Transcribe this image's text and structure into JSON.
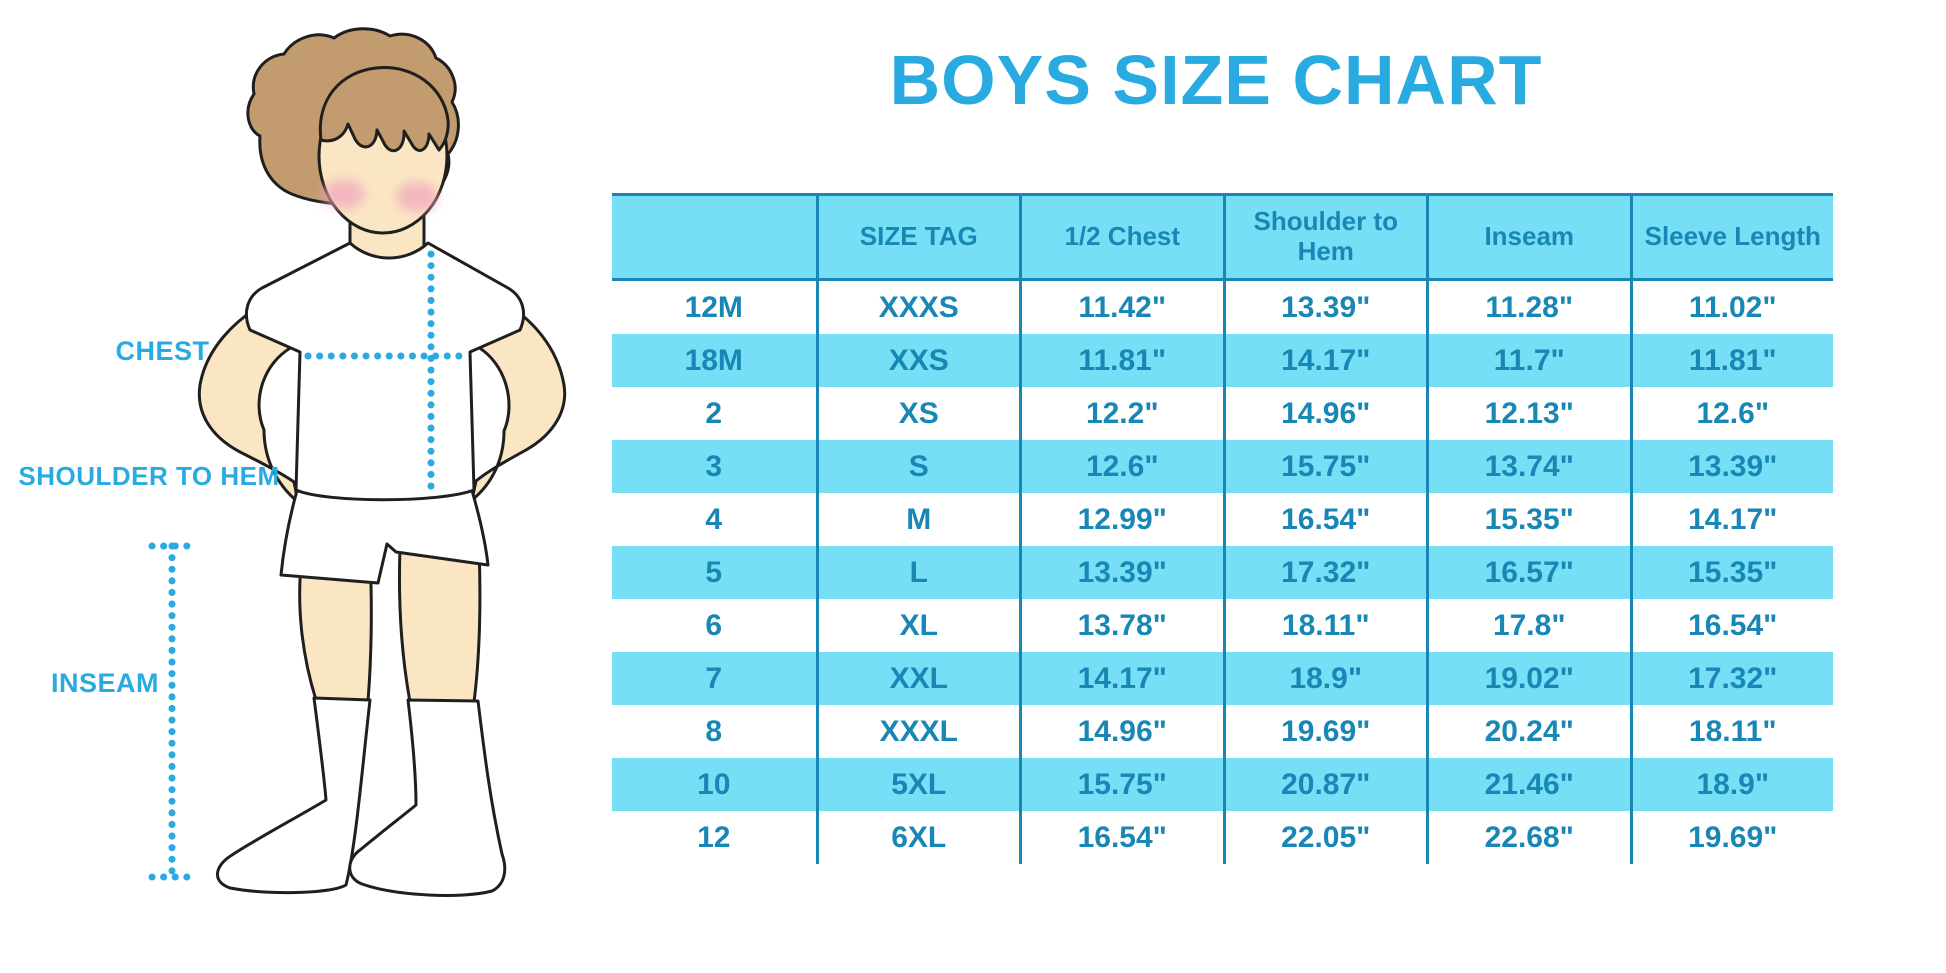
{
  "page": {
    "title": "BOYS SIZE CHART"
  },
  "figure": {
    "labels": {
      "chest": "CHEST",
      "shoulder_to_hem": "SHOULDER TO HEM",
      "inseam": "INSEAM"
    }
  },
  "chart_data": {
    "type": "table",
    "title": "BOYS SIZE CHART",
    "columns": [
      "",
      "SIZE TAG",
      "1/2 Chest",
      "Shoulder to Hem",
      "Inseam",
      "Sleeve Length"
    ],
    "rows": [
      [
        "12M",
        "XXXS",
        "11.42\"",
        "13.39\"",
        "11.28\"",
        "11.02\""
      ],
      [
        "18M",
        "XXS",
        "11.81\"",
        "14.17\"",
        "11.7\"",
        "11.81\""
      ],
      [
        "2",
        "XS",
        "12.2\"",
        "14.96\"",
        "12.13\"",
        "12.6\""
      ],
      [
        "3",
        "S",
        "12.6\"",
        "15.75\"",
        "13.74\"",
        "13.39\""
      ],
      [
        "4",
        "M",
        "12.99\"",
        "16.54\"",
        "15.35\"",
        "14.17\""
      ],
      [
        "5",
        "L",
        "13.39\"",
        "17.32\"",
        "16.57\"",
        "15.35\""
      ],
      [
        "6",
        "XL",
        "13.78\"",
        "18.11\"",
        "17.8\"",
        "16.54\""
      ],
      [
        "7",
        "XXL",
        "14.17\"",
        "18.9\"",
        "19.02\"",
        "17.32\""
      ],
      [
        "8",
        "XXXL",
        "14.96\"",
        "19.69\"",
        "20.24\"",
        "18.11\""
      ],
      [
        "10",
        "5XL",
        "15.75\"",
        "20.87\"",
        "21.46\"",
        "18.9\""
      ],
      [
        "12",
        "6XL",
        "16.54\"",
        "22.05\"",
        "22.68\"",
        "19.69\""
      ]
    ],
    "layout": {
      "alternating_row_fill": "every second row tinted",
      "grid": "vertical dividers only"
    }
  },
  "colors": {
    "title_blue": "#29ABE2",
    "label_blue": "#29ABE2",
    "dotted_line_blue": "#2BA9E1",
    "table_fill_blue": "#76DFF6",
    "table_text_blue": "#1987B5",
    "table_line_blue": "#1987B5",
    "skin": "#FAE6C3",
    "hair_brown": "#C29B6F",
    "cheek_pink": "#F2A9BE",
    "outline": "#1F1F1F"
  }
}
